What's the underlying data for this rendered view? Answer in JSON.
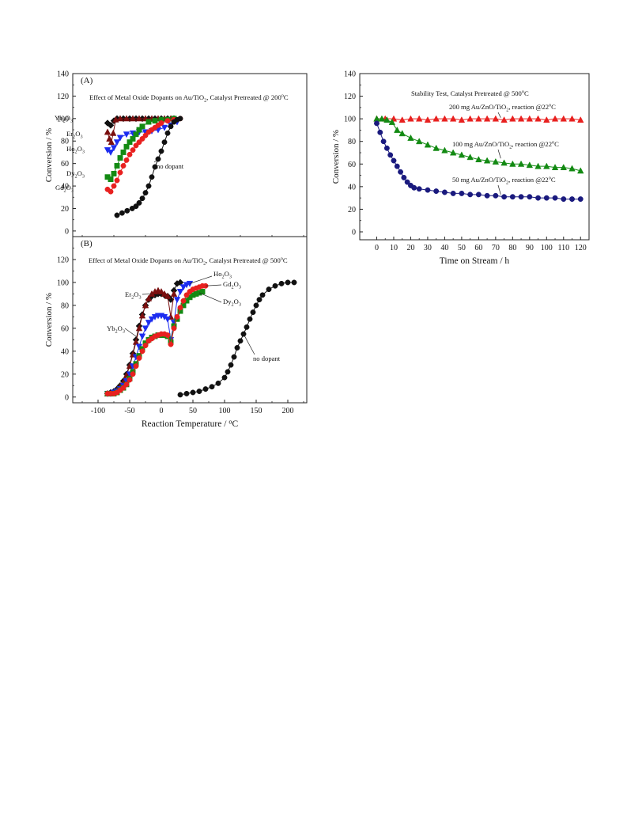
{
  "colors": {
    "black": "#111111",
    "red": "#e8201f",
    "blue": "#1c2cf0",
    "green": "#138a13",
    "darkred": "#7a0f0f",
    "navy": "#1a1a7e"
  },
  "chart_data": [
    {
      "id": "A",
      "type": "scatter",
      "panel_label": "(A)",
      "title": "Effect of Metal Oxide Dopants on Au/TiO2, Catalyst Pretreated @ 200°C",
      "ylabel": "Conversion / %",
      "xlabel": "",
      "xlim": [
        -140,
        230
      ],
      "ylim": [
        -5,
        140
      ],
      "yticks": [
        "0",
        "20",
        "40",
        "60",
        "80",
        "100",
        "120",
        "140"
      ],
      "xticks": [],
      "series": [
        {
          "name": "Yb2O3",
          "color": "#111111",
          "x": [
            -85,
            -80,
            -75,
            -70,
            -60,
            -50,
            -40,
            -30,
            -20,
            -10,
            0,
            10,
            20
          ],
          "y": [
            96,
            94,
            98,
            100,
            100,
            100,
            100,
            100,
            100,
            100,
            100,
            100,
            100
          ]
        },
        {
          "name": "Er2O3",
          "color": "#7a0f0f",
          "x": [
            -85,
            -82,
            -79,
            -76,
            -72,
            -65,
            -55,
            -45,
            -35,
            -25,
            -15,
            -5,
            5,
            15
          ],
          "y": [
            88,
            82,
            79,
            87,
            99,
            100,
            100,
            100,
            100,
            100,
            100,
            100,
            100,
            100
          ]
        },
        {
          "name": "Ho2O3",
          "color": "#1c2cf0",
          "x": [
            -85,
            -80,
            -75,
            -70,
            -65,
            -55,
            -45,
            -35,
            -25,
            -15,
            -5,
            5,
            15,
            25
          ],
          "y": [
            72,
            70,
            74,
            79,
            83,
            86,
            87,
            88,
            88,
            89,
            90,
            92,
            94,
            97
          ]
        },
        {
          "name": "Dy2O3",
          "color": "#138a13",
          "x": [
            -85,
            -80,
            -75,
            -70,
            -65,
            -60,
            -55,
            -50,
            -45,
            -40,
            -35,
            -30,
            -20,
            -10,
            0,
            10,
            20
          ],
          "y": [
            48,
            46,
            51,
            58,
            65,
            70,
            75,
            79,
            82,
            86,
            90,
            93,
            97,
            98,
            99,
            99,
            100
          ]
        },
        {
          "name": "Gd2O3",
          "color": "#e8201f",
          "x": [
            -85,
            -80,
            -75,
            -70,
            -65,
            -60,
            -55,
            -50,
            -45,
            -40,
            -35,
            -30,
            -25,
            -20,
            -15,
            -10,
            -5,
            0,
            10,
            20,
            30
          ],
          "y": [
            37,
            35,
            40,
            45,
            52,
            58,
            63,
            68,
            72,
            76,
            79,
            82,
            85,
            88,
            90,
            92,
            94,
            96,
            98,
            99,
            100
          ]
        },
        {
          "name": "no dopant",
          "color": "#111111",
          "x": [
            -70,
            -62,
            -54,
            -46,
            -40,
            -35,
            -30,
            -25,
            -20,
            -15,
            -10,
            -5,
            0,
            5,
            10,
            15,
            20,
            25,
            30
          ],
          "y": [
            14,
            16,
            18,
            20,
            22,
            25,
            29,
            34,
            40,
            48,
            57,
            64,
            71,
            79,
            87,
            93,
            97,
            99,
            100
          ]
        }
      ],
      "annotations": [
        {
          "text": "Yb2O3",
          "series": "Yb2O3"
        },
        {
          "text": "Er2O3",
          "series": "Er2O3"
        },
        {
          "text": "Ho2O3",
          "series": "Ho2O3"
        },
        {
          "text": "Dy2O3",
          "series": "Dy2O3"
        },
        {
          "text": "Gd2O3",
          "series": "Gd2O3"
        },
        {
          "text": "no dopant",
          "series": "no dopant"
        }
      ]
    },
    {
      "id": "B",
      "type": "scatter",
      "panel_label": "(B)",
      "title": "Effect of Metal Oxide Dopants on Au/TiO2, Catalyst Pretreated @ 500°C",
      "ylabel": "Conversion / %",
      "xlabel": "Reaction Temperature / °C",
      "xlim": [
        -140,
        230
      ],
      "ylim": [
        -5,
        140
      ],
      "yticks": [
        "0",
        "20",
        "40",
        "60",
        "80",
        "100",
        "120"
      ],
      "xticks": [
        "-100",
        "-50",
        "0",
        "50",
        "100",
        "150",
        "200"
      ],
      "series": [
        {
          "name": "Yb2O3",
          "color": "#111111",
          "x": [
            -85,
            -80,
            -75,
            -70,
            -65,
            -60,
            -55,
            -50,
            -45,
            -40,
            -35,
            -30,
            -25,
            -20,
            -15,
            -10,
            -5,
            0,
            5,
            10,
            15,
            20,
            25,
            30
          ],
          "y": [
            3,
            4,
            5,
            7,
            10,
            14,
            20,
            28,
            38,
            50,
            62,
            72,
            80,
            85,
            88,
            89,
            90,
            90,
            89,
            88,
            85,
            93,
            99,
            100
          ]
        },
        {
          "name": "Er2O3",
          "color": "#7a0f0f",
          "x": [
            -85,
            -80,
            -75,
            -70,
            -65,
            -60,
            -55,
            -50,
            -45,
            -40,
            -35,
            -30,
            -25,
            -20,
            -15,
            -10,
            -5,
            0,
            5,
            10,
            15,
            20
          ],
          "y": [
            3,
            3,
            4,
            6,
            9,
            13,
            19,
            27,
            37,
            48,
            60,
            71,
            80,
            86,
            90,
            92,
            93,
            92,
            90,
            88,
            70,
            90
          ]
        },
        {
          "name": "Ho2O3",
          "color": "#1c2cf0",
          "x": [
            -85,
            -80,
            -75,
            -70,
            -65,
            -60,
            -55,
            -50,
            -45,
            -40,
            -35,
            -30,
            -25,
            -20,
            -15,
            -10,
            -5,
            0,
            5,
            10,
            15,
            20,
            25,
            30,
            35,
            40,
            45
          ],
          "y": [
            3,
            3,
            4,
            5,
            7,
            10,
            14,
            20,
            27,
            35,
            44,
            53,
            60,
            65,
            68,
            70,
            71,
            71,
            70,
            68,
            50,
            65,
            85,
            92,
            96,
            98,
            99
          ]
        },
        {
          "name": "Dy2O3",
          "color": "#138a13",
          "x": [
            -85,
            -80,
            -75,
            -70,
            -65,
            -60,
            -55,
            -50,
            -45,
            -40,
            -35,
            -30,
            -25,
            -20,
            -15,
            -10,
            -5,
            0,
            5,
            10,
            15,
            20,
            25,
            30,
            35,
            40,
            45,
            50,
            55,
            60,
            65
          ],
          "y": [
            3,
            3,
            3,
            4,
            6,
            8,
            11,
            16,
            22,
            29,
            36,
            42,
            47,
            50,
            52,
            53,
            54,
            54,
            54,
            53,
            48,
            62,
            68,
            75,
            80,
            84,
            87,
            89,
            90,
            91,
            92
          ]
        },
        {
          "name": "Gd2O3",
          "color": "#e8201f",
          "x": [
            -85,
            -80,
            -75,
            -70,
            -65,
            -60,
            -55,
            -50,
            -45,
            -40,
            -35,
            -30,
            -25,
            -20,
            -15,
            -10,
            -5,
            0,
            5,
            10,
            15,
            20,
            25,
            30,
            35,
            40,
            45,
            50,
            55,
            60,
            65,
            70
          ],
          "y": [
            3,
            3,
            3,
            4,
            6,
            8,
            11,
            15,
            20,
            27,
            34,
            40,
            45,
            49,
            51,
            53,
            54,
            55,
            55,
            54,
            46,
            60,
            70,
            78,
            84,
            89,
            92,
            94,
            95,
            96,
            97,
            97
          ]
        },
        {
          "name": "no dopant",
          "color": "#111111",
          "x": [
            30,
            40,
            50,
            60,
            70,
            80,
            90,
            100,
            105,
            110,
            115,
            120,
            125,
            130,
            135,
            140,
            145,
            150,
            155,
            160,
            170,
            180,
            190,
            200,
            210
          ],
          "y": [
            2,
            3,
            4,
            5,
            7,
            9,
            12,
            17,
            22,
            28,
            35,
            43,
            49,
            55,
            61,
            68,
            74,
            80,
            85,
            89,
            94,
            97,
            99,
            100,
            100
          ]
        }
      ],
      "annotations": [
        {
          "text": "Er2O3",
          "series": "Er2O3"
        },
        {
          "text": "Yb2O3",
          "series": "Yb2O3"
        },
        {
          "text": "Ho2O3",
          "series": "Ho2O3"
        },
        {
          "text": "Gd2O3",
          "series": "Gd2O3"
        },
        {
          "text": "Dy2O3",
          "series": "Dy2O3"
        },
        {
          "text": "no dopant",
          "series": "no dopant"
        }
      ]
    },
    {
      "id": "C",
      "type": "scatter",
      "panel_label": "",
      "title": "Stability Test, Catalyst Pretreated @ 500°C",
      "ylabel": "Conversion / %",
      "xlabel": "Time on Stream / h",
      "xlim": [
        -10,
        125
      ],
      "ylim": [
        -7,
        140
      ],
      "yticks": [
        "0",
        "20",
        "40",
        "60",
        "80",
        "100",
        "120",
        "140"
      ],
      "xticks": [
        "0",
        "10",
        "20",
        "30",
        "40",
        "50",
        "60",
        "70",
        "80",
        "90",
        "100",
        "110",
        "120"
      ],
      "series": [
        {
          "name": "200 mg Au/ZnO/TiO2, reaction @22°C",
          "color": "#e8201f",
          "x": [
            0,
            5,
            10,
            15,
            20,
            25,
            30,
            35,
            40,
            45,
            50,
            55,
            60,
            65,
            70,
            75,
            80,
            85,
            90,
            95,
            100,
            105,
            110,
            115,
            120
          ],
          "y": [
            100,
            100,
            100,
            99,
            100,
            100,
            99,
            100,
            100,
            100,
            99,
            100,
            100,
            100,
            100,
            99,
            100,
            100,
            100,
            100,
            99,
            100,
            100,
            100,
            99
          ]
        },
        {
          "name": "100 mg Au/ZnO/TiO2, reaction @22°C",
          "color": "#138a13",
          "x": [
            0,
            3,
            6,
            9,
            12,
            15,
            20,
            25,
            30,
            35,
            40,
            45,
            50,
            55,
            60,
            65,
            70,
            75,
            80,
            85,
            90,
            95,
            100,
            105,
            110,
            115,
            120
          ],
          "y": [
            100,
            100,
            99,
            97,
            90,
            87,
            83,
            80,
            77,
            74,
            72,
            70,
            68,
            66,
            64,
            63,
            62,
            61,
            60,
            60,
            59,
            58,
            58,
            57,
            57,
            56,
            54
          ]
        },
        {
          "name": "50 mg Au/ZnO/TiO2, reaction @22°C",
          "color": "#1a1a7e",
          "x": [
            0,
            2,
            4,
            6,
            8,
            10,
            12,
            14,
            16,
            18,
            20,
            22,
            25,
            30,
            35,
            40,
            45,
            50,
            55,
            60,
            65,
            70,
            75,
            80,
            85,
            90,
            95,
            100,
            105,
            110,
            115,
            120
          ],
          "y": [
            96,
            88,
            80,
            74,
            68,
            63,
            58,
            53,
            48,
            44,
            41,
            39,
            38,
            37,
            36,
            35,
            34,
            34,
            33,
            33,
            32,
            32,
            31,
            31,
            31,
            31,
            30,
            30,
            30,
            29,
            29,
            29
          ]
        }
      ],
      "annotations": [
        {
          "text": "200 mg Au/ZnO/TiO2, reaction @22°C",
          "series": "200 mg Au/ZnO/TiO2, reaction @22°C"
        },
        {
          "text": "100 mg Au/ZnO/TiO2, reaction @22°C",
          "series": "100 mg Au/ZnO/TiO2, reaction @22°C"
        },
        {
          "text": "50 mg Au/ZnO/TiO2, reaction @22°C",
          "series": "50 mg Au/ZnO/TiO2, reaction @22°C"
        }
      ]
    }
  ]
}
